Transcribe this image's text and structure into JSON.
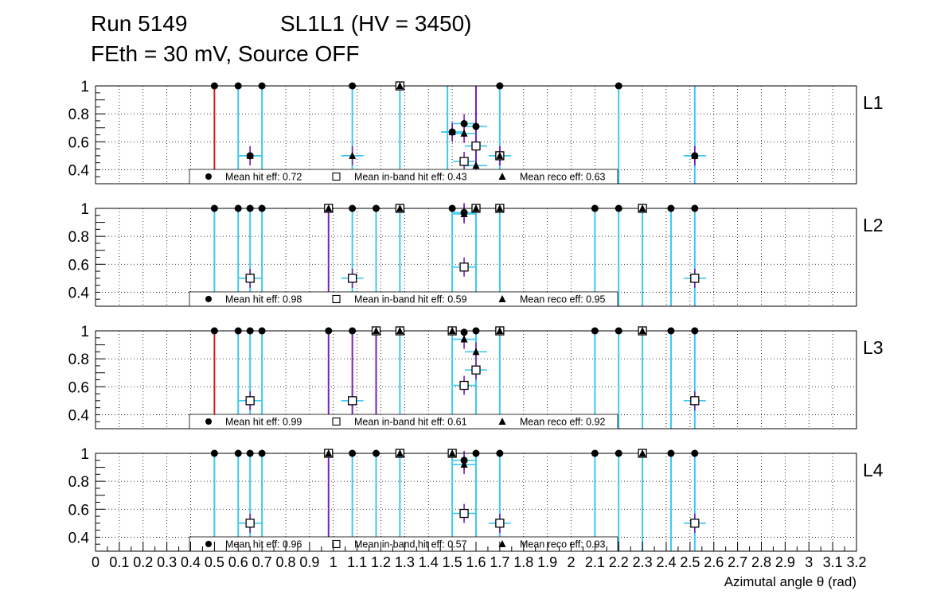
{
  "header": {
    "run": "Run 5149",
    "chamber": "SL1L1 (HV = 3450)",
    "settings": "FEth = 30 mV, Source OFF"
  },
  "chart_data": {
    "type": "scatter",
    "xlabel": "Azimutal angle θ (rad)",
    "xlim": [
      0,
      3.2
    ],
    "ylim": [
      0.3,
      1.0
    ],
    "x_ticks": [
      "0",
      "0.1",
      "0.2",
      "0.3",
      "0.4",
      "0.5",
      "0.6",
      "0.7",
      "0.8",
      "0.9",
      "1",
      "1.1",
      "1.2",
      "1.3",
      "1.4",
      "1.5",
      "1.6",
      "1.7",
      "1.8",
      "1.9",
      "2",
      "2.1",
      "2.2",
      "2.3",
      "2.4",
      "2.5",
      "2.6",
      "2.7",
      "2.8",
      "2.9",
      "3",
      "3.1",
      "3.2"
    ],
    "y_ticks": [
      "0.4",
      "0.6",
      "0.8",
      "1"
    ],
    "colors": {
      "band": "#3ec8f0",
      "purple": "#7a1fb8",
      "red": "#d42020",
      "marker": "#000000"
    },
    "panels": [
      {
        "name": "L1",
        "legend": {
          "hit": "Mean hit  eff: 0.72",
          "inband": "Mean in-band hit eff: 0.43",
          "reco": "Mean reco eff: 0.63"
        },
        "band_lines": [
          0.6,
          0.7,
          1.08,
          1.28,
          1.48,
          1.7,
          2.2,
          2.52
        ],
        "purple_lines": [
          1.6
        ],
        "red_lines": [
          0.5
        ],
        "hit": [
          [
            0.5,
            1
          ],
          [
            0.6,
            1
          ],
          [
            0.7,
            1
          ],
          [
            1.08,
            1
          ],
          [
            1.28,
            1
          ],
          [
            1.7,
            1
          ],
          [
            2.2,
            1
          ],
          [
            0.65,
            0.5
          ],
          [
            2.52,
            0.5
          ],
          [
            1.55,
            0.73
          ],
          [
            1.6,
            0.71
          ],
          [
            1.5,
            0.67
          ]
        ],
        "inband": [
          [
            1.28,
            1
          ],
          [
            1.55,
            0.46
          ],
          [
            1.6,
            0.57
          ],
          [
            1.7,
            0.5
          ]
        ],
        "reco": [
          [
            0.65,
            0.5
          ],
          [
            1.08,
            0.5
          ],
          [
            1.28,
            1
          ],
          [
            1.5,
            0.67
          ],
          [
            1.55,
            0.66
          ],
          [
            1.6,
            0.43
          ],
          [
            1.7,
            0.5
          ],
          [
            2.52,
            0.5
          ]
        ]
      },
      {
        "name": "L2",
        "legend": {
          "hit": "Mean hit  eff: 0.98",
          "inband": "Mean in-band hit eff: 0.59",
          "reco": "Mean reco eff: 0.95"
        },
        "band_lines": [
          0.5,
          0.6,
          0.65,
          0.7,
          1.08,
          1.18,
          1.28,
          1.5,
          1.6,
          1.7,
          2.1,
          2.2,
          2.3,
          2.42,
          2.52
        ],
        "purple_lines": [
          0.98
        ],
        "red_lines": [],
        "hit": [
          [
            0.5,
            1
          ],
          [
            0.6,
            1
          ],
          [
            0.65,
            1
          ],
          [
            0.7,
            1
          ],
          [
            0.98,
            1
          ],
          [
            1.08,
            1
          ],
          [
            1.18,
            1
          ],
          [
            1.28,
            1
          ],
          [
            1.5,
            1
          ],
          [
            1.6,
            1
          ],
          [
            1.7,
            1
          ],
          [
            2.1,
            1
          ],
          [
            2.2,
            1
          ],
          [
            2.3,
            1
          ],
          [
            2.42,
            1
          ],
          [
            2.52,
            1
          ],
          [
            1.55,
            0.97
          ]
        ],
        "inband": [
          [
            0.98,
            1
          ],
          [
            1.28,
            1
          ],
          [
            1.6,
            1
          ],
          [
            1.7,
            1
          ],
          [
            2.3,
            1
          ],
          [
            0.65,
            0.5
          ],
          [
            1.08,
            0.5
          ],
          [
            1.55,
            0.58
          ],
          [
            2.52,
            0.5
          ]
        ],
        "reco": [
          [
            0.98,
            1
          ],
          [
            1.28,
            1
          ],
          [
            1.55,
            0.96
          ],
          [
            1.6,
            1
          ],
          [
            1.7,
            1
          ],
          [
            2.3,
            1
          ]
        ]
      },
      {
        "name": "L3",
        "legend": {
          "hit": "Mean hit  eff: 0.99",
          "inband": "Mean in-band hit eff: 0.61",
          "reco": "Mean reco eff: 0.92"
        },
        "band_lines": [
          0.6,
          0.65,
          0.7,
          1.28,
          1.5,
          1.6,
          1.7,
          2.1,
          2.2,
          2.3,
          2.42,
          2.52
        ],
        "purple_lines": [
          0.98,
          1.08,
          1.18
        ],
        "red_lines": [
          0.5
        ],
        "hit": [
          [
            0.5,
            1
          ],
          [
            0.6,
            1
          ],
          [
            0.65,
            1
          ],
          [
            0.7,
            1
          ],
          [
            0.98,
            1
          ],
          [
            1.08,
            1
          ],
          [
            1.18,
            1
          ],
          [
            1.28,
            1
          ],
          [
            1.5,
            1
          ],
          [
            1.55,
            0.99
          ],
          [
            1.6,
            1
          ],
          [
            1.7,
            1
          ],
          [
            2.1,
            1
          ],
          [
            2.2,
            1
          ],
          [
            2.3,
            1
          ],
          [
            2.42,
            1
          ],
          [
            2.52,
            1
          ]
        ],
        "inband": [
          [
            1.18,
            1
          ],
          [
            1.28,
            1
          ],
          [
            1.5,
            1
          ],
          [
            1.7,
            1
          ],
          [
            2.3,
            1
          ],
          [
            0.65,
            0.5
          ],
          [
            1.08,
            0.5
          ],
          [
            1.55,
            0.61
          ],
          [
            1.6,
            0.72
          ],
          [
            2.52,
            0.5
          ]
        ],
        "reco": [
          [
            1.18,
            1
          ],
          [
            1.28,
            1
          ],
          [
            1.5,
            1
          ],
          [
            1.55,
            0.94
          ],
          [
            1.6,
            0.85
          ],
          [
            1.7,
            1
          ],
          [
            2.3,
            1
          ]
        ]
      },
      {
        "name": "L4",
        "legend": {
          "hit": "Mean hit  eff: 0.96",
          "inband": "Mean in-band hit eff: 0.57",
          "reco": "Mean reco eff: 0.93"
        },
        "band_lines": [
          0.5,
          0.6,
          0.65,
          0.7,
          1.08,
          1.18,
          1.28,
          1.5,
          1.6,
          1.7,
          2.1,
          2.2,
          2.3,
          2.42,
          2.52
        ],
        "purple_lines": [
          0.98
        ],
        "red_lines": [],
        "hit": [
          [
            0.5,
            1
          ],
          [
            0.6,
            1
          ],
          [
            0.65,
            1
          ],
          [
            0.7,
            1
          ],
          [
            0.98,
            1
          ],
          [
            1.08,
            1
          ],
          [
            1.18,
            1
          ],
          [
            1.28,
            1
          ],
          [
            1.5,
            1
          ],
          [
            1.55,
            0.95
          ],
          [
            1.6,
            1
          ],
          [
            1.7,
            1
          ],
          [
            2.1,
            1
          ],
          [
            2.2,
            1
          ],
          [
            2.3,
            1
          ],
          [
            2.42,
            1
          ],
          [
            2.52,
            1
          ]
        ],
        "inband": [
          [
            0.98,
            1
          ],
          [
            1.28,
            1
          ],
          [
            1.5,
            1
          ],
          [
            2.3,
            1
          ],
          [
            0.65,
            0.5
          ],
          [
            1.55,
            0.57
          ],
          [
            1.7,
            0.5
          ],
          [
            2.52,
            0.5
          ]
        ],
        "reco": [
          [
            0.98,
            1
          ],
          [
            1.28,
            1
          ],
          [
            1.5,
            1
          ],
          [
            1.55,
            0.92
          ],
          [
            2.3,
            1
          ]
        ]
      }
    ]
  }
}
